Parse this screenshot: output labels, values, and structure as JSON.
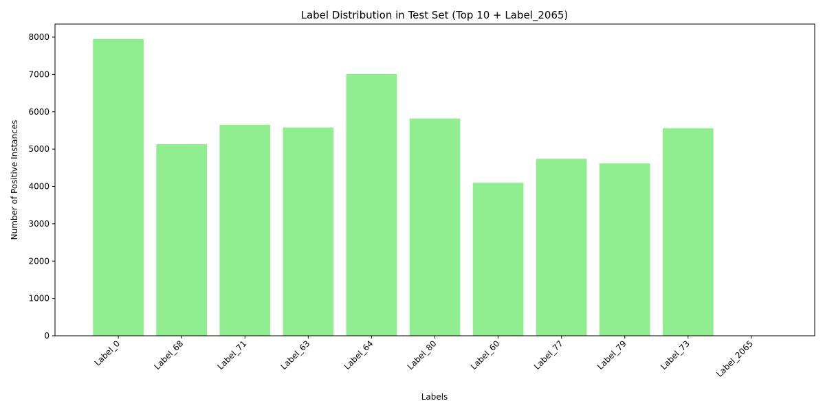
{
  "chart_data": {
    "type": "bar",
    "title": "Label Distribution in Test Set (Top 10 + Label_2065)",
    "xlabel": "Labels",
    "ylabel": "Number of Positive Instances",
    "categories": [
      "Label_0",
      "Label_68",
      "Label_71",
      "Label_63",
      "Label_64",
      "Label_80",
      "Label_60",
      "Label_77",
      "Label_79",
      "Label_73",
      "Label_2065"
    ],
    "values": [
      7950,
      5130,
      5650,
      5580,
      7010,
      5820,
      4100,
      4740,
      4620,
      5560,
      0
    ],
    "ylim": [
      0,
      8350
    ],
    "yticks": [
      0,
      1000,
      2000,
      3000,
      4000,
      5000,
      6000,
      7000,
      8000
    ],
    "bar_color": "#90ee90",
    "grid": false,
    "legend": "none"
  }
}
